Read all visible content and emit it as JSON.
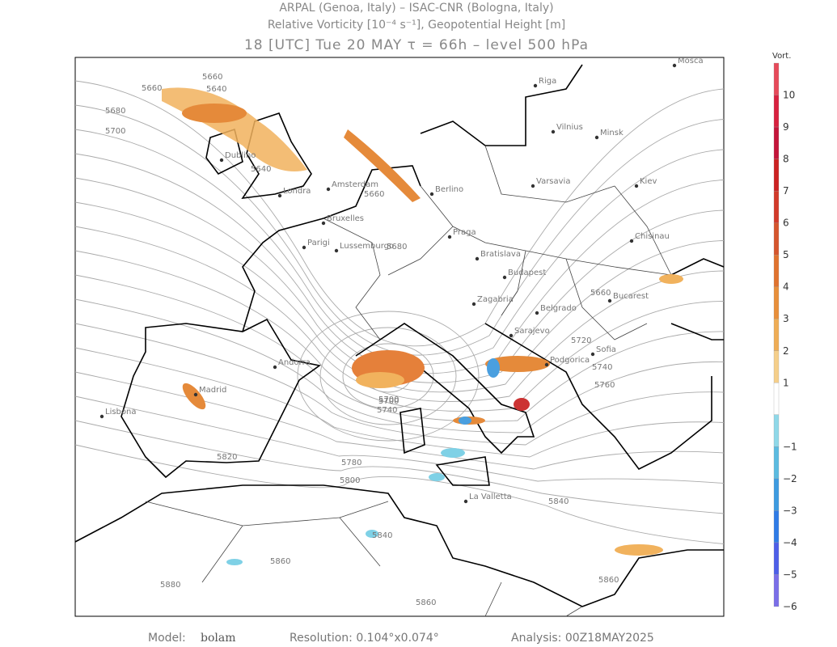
{
  "header": {
    "line1": "ARPAL (Genoa, Italy)  –  ISAC-CNR (Bologna, Italy)",
    "line2": "Relative Vorticity [10⁻⁴ s⁻¹], Geopotential Height [m]",
    "line3": "18 [UTC] Tue 20 MAY  τ = 66h  –  level 500 hPa"
  },
  "cities": [
    "Mosca",
    "Riga",
    "Vilnius",
    "Minsk",
    "Kiev",
    "Varsavia",
    "Berlino",
    "Amsterdam",
    "Londra",
    "Dublino",
    "Bruxelles",
    "Parigi",
    "Lussemburgo",
    "Praga",
    "Bratislava",
    "Budapest",
    "Chisinau",
    "Bucarest",
    "Belgrado",
    "Zagabria",
    "Sarajevo",
    "Podgorica",
    "Sofia",
    "Madrid",
    "Lisbona",
    "Andorra",
    "La Valletta"
  ],
  "contour_labels": [
    "5660",
    "5640",
    "5660",
    "5680",
    "5700",
    "5640",
    "5660",
    "5680",
    "5660",
    "5700",
    "5720",
    "5740",
    "5760",
    "5780",
    "5800",
    "5820",
    "5840",
    "5860",
    "5880",
    "5860",
    "5860",
    "5840",
    "5740",
    "5700"
  ],
  "colorbar": {
    "title": "Vort.",
    "labels": [
      "10",
      "9",
      "8",
      "7",
      "6",
      "5",
      "4",
      "3",
      "2",
      "1",
      "−1",
      "−2",
      "−3",
      "−4",
      "−5",
      "−6"
    ]
  },
  "footer": {
    "model_label": "Model:",
    "model": "bolam",
    "resolution": "Resolution: 0.104°x0.074°",
    "analysis": "Analysis: 00Z18MAY2025"
  }
}
